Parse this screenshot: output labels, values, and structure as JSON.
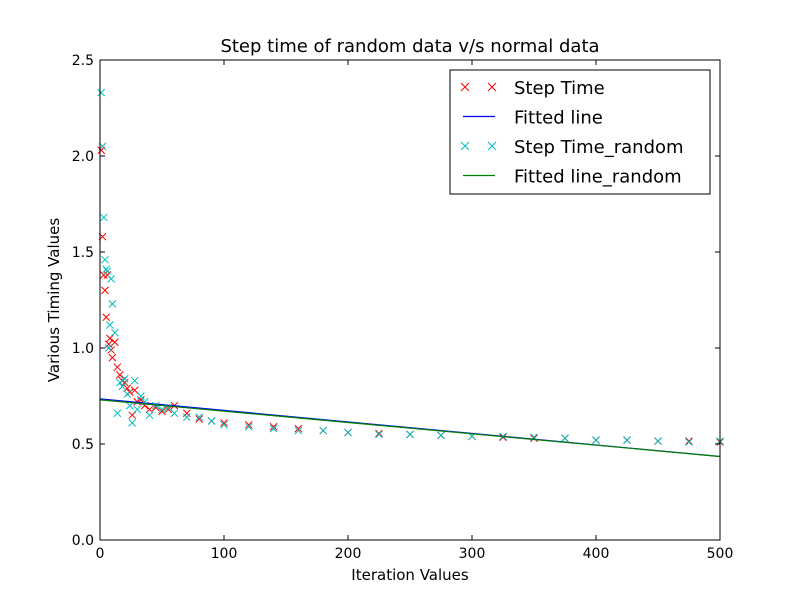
{
  "chart_data": {
    "type": "scatter",
    "title": "Step time of random data v/s normal data",
    "xlabel": "Iteration Values",
    "ylabel": "Various Timing Values",
    "xlim": [
      0,
      500
    ],
    "ylim": [
      0,
      2.5
    ],
    "xticks": [
      "0",
      "100",
      "200",
      "300",
      "400",
      "500"
    ],
    "yticks": [
      "0.0",
      "0.5",
      "1.0",
      "1.5",
      "2.0",
      "2.5"
    ],
    "grid": false,
    "legend_position": "top-right",
    "series": [
      {
        "name": "Step Time",
        "kind": "markers",
        "marker": "x",
        "color": "#ff0000",
        "points": [
          [
            1,
            2.03
          ],
          [
            2,
            1.58
          ],
          [
            3,
            1.38
          ],
          [
            4,
            1.3
          ],
          [
            5,
            1.16
          ],
          [
            6,
            1.38
          ],
          [
            7,
            1.02
          ],
          [
            8,
            1.05
          ],
          [
            9,
            0.99
          ],
          [
            10,
            0.95
          ],
          [
            12,
            1.03
          ],
          [
            14,
            0.9
          ],
          [
            16,
            0.86
          ],
          [
            18,
            0.83
          ],
          [
            20,
            0.82
          ],
          [
            22,
            0.79
          ],
          [
            24,
            0.77
          ],
          [
            26,
            0.65
          ],
          [
            28,
            0.78
          ],
          [
            30,
            0.72
          ],
          [
            33,
            0.73
          ],
          [
            36,
            0.7
          ],
          [
            40,
            0.68
          ],
          [
            45,
            0.69
          ],
          [
            50,
            0.67
          ],
          [
            55,
            0.68
          ],
          [
            60,
            0.7
          ],
          [
            70,
            0.66
          ],
          [
            80,
            0.63
          ],
          [
            90,
            0.62
          ],
          [
            100,
            0.61
          ],
          [
            120,
            0.6
          ],
          [
            140,
            0.59
          ],
          [
            160,
            0.58
          ],
          [
            180,
            0.57
          ],
          [
            200,
            0.56
          ],
          [
            225,
            0.555
          ],
          [
            250,
            0.55
          ],
          [
            275,
            0.545
          ],
          [
            300,
            0.54
          ],
          [
            325,
            0.535
          ],
          [
            350,
            0.53
          ],
          [
            375,
            0.53
          ],
          [
            400,
            0.52
          ],
          [
            425,
            0.52
          ],
          [
            450,
            0.515
          ],
          [
            475,
            0.515
          ],
          [
            500,
            0.51
          ]
        ]
      },
      {
        "name": "Fitted line",
        "kind": "line",
        "color": "#0000ff",
        "points": [
          [
            0,
            0.735
          ],
          [
            500,
            0.435
          ]
        ]
      },
      {
        "name": "Step Time_random",
        "kind": "markers",
        "marker": "x",
        "color": "#00bfbf",
        "points": [
          [
            1,
            2.33
          ],
          [
            2,
            2.05
          ],
          [
            3,
            1.68
          ],
          [
            4,
            1.46
          ],
          [
            5,
            1.41
          ],
          [
            6,
            1.4
          ],
          [
            7,
            1.0
          ],
          [
            8,
            1.12
          ],
          [
            9,
            1.36
          ],
          [
            10,
            1.23
          ],
          [
            12,
            1.08
          ],
          [
            14,
            0.66
          ],
          [
            16,
            0.82
          ],
          [
            18,
            0.8
          ],
          [
            20,
            0.84
          ],
          [
            22,
            0.76
          ],
          [
            24,
            0.7
          ],
          [
            26,
            0.61
          ],
          [
            28,
            0.83
          ],
          [
            30,
            0.68
          ],
          [
            33,
            0.75
          ],
          [
            36,
            0.72
          ],
          [
            40,
            0.65
          ],
          [
            45,
            0.7
          ],
          [
            50,
            0.68
          ],
          [
            55,
            0.69
          ],
          [
            60,
            0.66
          ],
          [
            70,
            0.64
          ],
          [
            80,
            0.64
          ],
          [
            90,
            0.62
          ],
          [
            100,
            0.6
          ],
          [
            120,
            0.59
          ],
          [
            140,
            0.58
          ],
          [
            160,
            0.57
          ],
          [
            180,
            0.57
          ],
          [
            200,
            0.56
          ],
          [
            225,
            0.55
          ],
          [
            250,
            0.55
          ],
          [
            275,
            0.545
          ],
          [
            300,
            0.54
          ],
          [
            325,
            0.54
          ],
          [
            350,
            0.535
          ],
          [
            375,
            0.53
          ],
          [
            400,
            0.52
          ],
          [
            425,
            0.52
          ],
          [
            450,
            0.515
          ],
          [
            475,
            0.51
          ],
          [
            500,
            0.515
          ]
        ]
      },
      {
        "name": "Fitted line_random",
        "kind": "line",
        "color": "#008000",
        "points": [
          [
            0,
            0.73
          ],
          [
            500,
            0.435
          ]
        ]
      }
    ]
  }
}
